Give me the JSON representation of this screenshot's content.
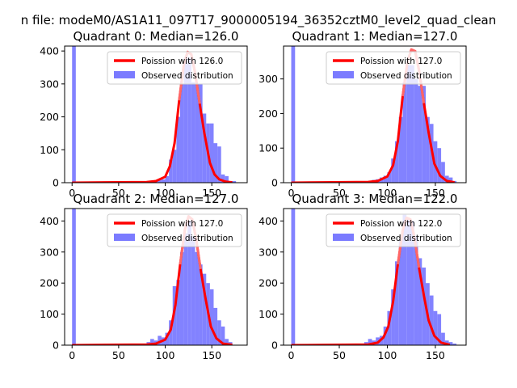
{
  "suptitle": "n file: modeM0/AS1A11_097T17_9000005194_36352cztM0_level2_quad_clean",
  "colors": {
    "hist": "#7b7bff",
    "fit": "#ff0000",
    "fit_peak": "#ff8080",
    "axes": "#000000",
    "legend_border": "#cccccc"
  },
  "chart_data": [
    {
      "type": "histogram",
      "title": "Quadrant 0: Median=126.0",
      "median": 126.0,
      "xlim": [
        -8,
        188
      ],
      "ylim": [
        0,
        415
      ],
      "xticks": [
        0,
        50,
        100,
        150
      ],
      "yticks": [
        0,
        100,
        200,
        300,
        400
      ],
      "bin_width": 4,
      "hist": [
        [
          0,
          415
        ],
        [
          4,
          0
        ],
        [
          8,
          0
        ],
        [
          12,
          0
        ],
        [
          16,
          0
        ],
        [
          20,
          0
        ],
        [
          24,
          0
        ],
        [
          28,
          0
        ],
        [
          32,
          0
        ],
        [
          36,
          0
        ],
        [
          40,
          0
        ],
        [
          44,
          0
        ],
        [
          48,
          0
        ],
        [
          52,
          0
        ],
        [
          56,
          0
        ],
        [
          60,
          0
        ],
        [
          64,
          0
        ],
        [
          68,
          0
        ],
        [
          72,
          0
        ],
        [
          76,
          0
        ],
        [
          80,
          0
        ],
        [
          84,
          2
        ],
        [
          88,
          5
        ],
        [
          92,
          8
        ],
        [
          96,
          10
        ],
        [
          100,
          20
        ],
        [
          104,
          70
        ],
        [
          108,
          100
        ],
        [
          112,
          200
        ],
        [
          116,
          300
        ],
        [
          120,
          380
        ],
        [
          124,
          380
        ],
        [
          128,
          305
        ],
        [
          132,
          300
        ],
        [
          136,
          300
        ],
        [
          140,
          210
        ],
        [
          144,
          180
        ],
        [
          148,
          180
        ],
        [
          152,
          120
        ],
        [
          156,
          110
        ],
        [
          160,
          25
        ],
        [
          164,
          20
        ],
        [
          168,
          5
        ],
        [
          172,
          5
        ]
      ],
      "fit": [
        [
          0,
          0
        ],
        [
          80,
          2
        ],
        [
          90,
          5
        ],
        [
          100,
          18
        ],
        [
          105,
          50
        ],
        [
          110,
          120
        ],
        [
          115,
          250
        ],
        [
          120,
          360
        ],
        [
          124,
          397
        ],
        [
          128,
          390
        ],
        [
          132,
          335
        ],
        [
          137,
          240
        ],
        [
          142,
          150
        ],
        [
          148,
          60
        ],
        [
          153,
          25
        ],
        [
          158,
          10
        ],
        [
          165,
          3
        ],
        [
          172,
          1
        ]
      ],
      "legend": {
        "placement": "upper-right",
        "fit_label": "Poission with 126.0",
        "hist_label": "Observed distribution"
      }
    },
    {
      "type": "histogram",
      "title": "Quadrant 1: Median=127.0",
      "median": 127.0,
      "xlim": [
        -8,
        182
      ],
      "ylim": [
        0,
        395
      ],
      "xticks": [
        0,
        50,
        100,
        150
      ],
      "yticks": [
        0,
        100,
        200,
        300
      ],
      "bin_width": 4,
      "hist": [
        [
          0,
          395
        ],
        [
          4,
          0
        ],
        [
          8,
          0
        ],
        [
          12,
          0
        ],
        [
          16,
          0
        ],
        [
          20,
          0
        ],
        [
          24,
          0
        ],
        [
          28,
          0
        ],
        [
          32,
          0
        ],
        [
          36,
          0
        ],
        [
          40,
          0
        ],
        [
          44,
          0
        ],
        [
          48,
          0
        ],
        [
          52,
          0
        ],
        [
          56,
          0
        ],
        [
          60,
          0
        ],
        [
          64,
          0
        ],
        [
          68,
          0
        ],
        [
          72,
          2
        ],
        [
          76,
          2
        ],
        [
          80,
          3
        ],
        [
          84,
          8
        ],
        [
          88,
          10
        ],
        [
          92,
          15
        ],
        [
          96,
          20
        ],
        [
          100,
          30
        ],
        [
          104,
          70
        ],
        [
          108,
          120
        ],
        [
          112,
          190
        ],
        [
          116,
          290
        ],
        [
          120,
          340
        ],
        [
          124,
          340
        ],
        [
          128,
          300
        ],
        [
          132,
          280
        ],
        [
          136,
          280
        ],
        [
          140,
          190
        ],
        [
          144,
          170
        ],
        [
          148,
          120
        ],
        [
          152,
          100
        ],
        [
          156,
          60
        ],
        [
          160,
          20
        ],
        [
          164,
          15
        ],
        [
          168,
          5
        ]
      ],
      "fit": [
        [
          0,
          0
        ],
        [
          80,
          2
        ],
        [
          90,
          5
        ],
        [
          100,
          18
        ],
        [
          106,
          50
        ],
        [
          111,
          120
        ],
        [
          116,
          250
        ],
        [
          121,
          350
        ],
        [
          125,
          385
        ],
        [
          129,
          380
        ],
        [
          133,
          325
        ],
        [
          138,
          230
        ],
        [
          143,
          145
        ],
        [
          149,
          55
        ],
        [
          155,
          20
        ],
        [
          162,
          5
        ],
        [
          170,
          1
        ]
      ],
      "legend": {
        "placement": "upper-right",
        "fit_label": "Poission with 127.0",
        "hist_label": "Observed distribution"
      }
    },
    {
      "type": "histogram",
      "title": "Quadrant 2: Median=127.0",
      "median": 127.0,
      "xlim": [
        -8,
        188
      ],
      "ylim": [
        0,
        440
      ],
      "xticks": [
        0,
        50,
        100,
        150
      ],
      "yticks": [
        0,
        100,
        200,
        300,
        400
      ],
      "bin_width": 4,
      "hist": [
        [
          0,
          440
        ],
        [
          4,
          0
        ],
        [
          8,
          0
        ],
        [
          12,
          0
        ],
        [
          16,
          0
        ],
        [
          20,
          0
        ],
        [
          24,
          0
        ],
        [
          28,
          0
        ],
        [
          32,
          0
        ],
        [
          36,
          0
        ],
        [
          40,
          0
        ],
        [
          44,
          0
        ],
        [
          48,
          0
        ],
        [
          52,
          0
        ],
        [
          56,
          0
        ],
        [
          60,
          0
        ],
        [
          64,
          0
        ],
        [
          68,
          2
        ],
        [
          72,
          2
        ],
        [
          76,
          5
        ],
        [
          80,
          10
        ],
        [
          84,
          20
        ],
        [
          88,
          15
        ],
        [
          92,
          30
        ],
        [
          96,
          25
        ],
        [
          100,
          40
        ],
        [
          104,
          80
        ],
        [
          108,
          190
        ],
        [
          112,
          210
        ],
        [
          116,
          300
        ],
        [
          120,
          360
        ],
        [
          124,
          400
        ],
        [
          128,
          350
        ],
        [
          132,
          300
        ],
        [
          136,
          260
        ],
        [
          140,
          230
        ],
        [
          144,
          200
        ],
        [
          148,
          180
        ],
        [
          152,
          120
        ],
        [
          156,
          80
        ],
        [
          160,
          60
        ],
        [
          164,
          20
        ],
        [
          168,
          10
        ]
      ],
      "fit": [
        [
          0,
          0
        ],
        [
          80,
          2
        ],
        [
          90,
          5
        ],
        [
          100,
          18
        ],
        [
          106,
          50
        ],
        [
          111,
          130
        ],
        [
          116,
          260
        ],
        [
          121,
          370
        ],
        [
          125,
          415
        ],
        [
          129,
          405
        ],
        [
          133,
          345
        ],
        [
          138,
          245
        ],
        [
          143,
          155
        ],
        [
          149,
          60
        ],
        [
          155,
          22
        ],
        [
          162,
          5
        ],
        [
          172,
          1
        ]
      ],
      "legend": {
        "placement": "upper-right",
        "fit_label": "Poission with 127.0",
        "hist_label": "Observed distribution"
      }
    },
    {
      "type": "histogram",
      "title": "Quadrant 3: Median=122.0",
      "median": 122.0,
      "xlim": [
        -8,
        182
      ],
      "ylim": [
        0,
        440
      ],
      "xticks": [
        0,
        50,
        100,
        150
      ],
      "yticks": [
        0,
        100,
        200,
        300,
        400
      ],
      "bin_width": 4,
      "hist": [
        [
          0,
          440
        ],
        [
          4,
          0
        ],
        [
          8,
          0
        ],
        [
          12,
          0
        ],
        [
          16,
          0
        ],
        [
          20,
          0
        ],
        [
          24,
          0
        ],
        [
          28,
          0
        ],
        [
          32,
          0
        ],
        [
          36,
          0
        ],
        [
          40,
          0
        ],
        [
          44,
          0
        ],
        [
          48,
          0
        ],
        [
          52,
          0
        ],
        [
          56,
          0
        ],
        [
          60,
          0
        ],
        [
          64,
          5
        ],
        [
          68,
          2
        ],
        [
          72,
          3
        ],
        [
          76,
          10
        ],
        [
          80,
          20
        ],
        [
          84,
          15
        ],
        [
          88,
          25
        ],
        [
          92,
          30
        ],
        [
          96,
          60
        ],
        [
          100,
          110
        ],
        [
          104,
          180
        ],
        [
          108,
          270
        ],
        [
          112,
          340
        ],
        [
          116,
          420
        ],
        [
          120,
          410
        ],
        [
          124,
          400
        ],
        [
          128,
          350
        ],
        [
          132,
          280
        ],
        [
          136,
          250
        ],
        [
          140,
          200
        ],
        [
          144,
          160
        ],
        [
          148,
          110
        ],
        [
          152,
          100
        ],
        [
          156,
          40
        ],
        [
          160,
          15
        ],
        [
          164,
          10
        ],
        [
          168,
          5
        ]
      ],
      "fit": [
        [
          0,
          0
        ],
        [
          80,
          2
        ],
        [
          90,
          8
        ],
        [
          96,
          25
        ],
        [
          101,
          60
        ],
        [
          106,
          140
        ],
        [
          111,
          260
        ],
        [
          116,
          370
        ],
        [
          120,
          410
        ],
        [
          124,
          405
        ],
        [
          128,
          350
        ],
        [
          133,
          250
        ],
        [
          138,
          160
        ],
        [
          143,
          80
        ],
        [
          149,
          30
        ],
        [
          156,
          8
        ],
        [
          165,
          1
        ]
      ],
      "legend": {
        "placement": "upper-right",
        "fit_label": "Poission with 122.0",
        "hist_label": "Observed distribution"
      }
    }
  ]
}
